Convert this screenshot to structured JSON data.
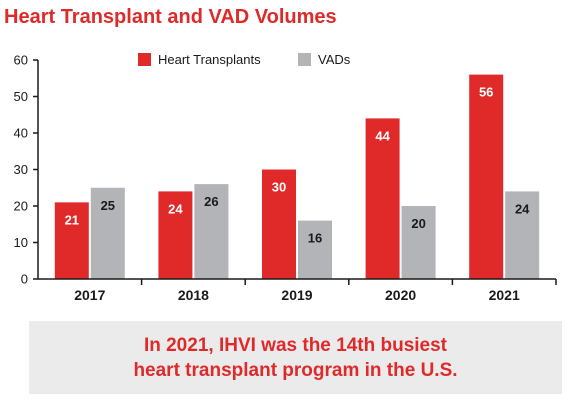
{
  "title": "Heart Transplant and VAD Volumes",
  "callout": {
    "line1": "In 2021, IHVI was the 14th busiest",
    "line2": "heart transplant program in the U.S."
  },
  "colors": {
    "accent": "#e02a2a",
    "transplants": "#e02a2a",
    "vads": "#b3b4b8",
    "text": "#1a1a1a",
    "callout_bg": "#ebebeb"
  },
  "chart_data": {
    "type": "bar",
    "title": "Heart Transplant and VAD Volumes",
    "xlabel": "",
    "ylabel": "",
    "categories": [
      "2017",
      "2018",
      "2019",
      "2020",
      "2021"
    ],
    "series": [
      {
        "name": "Heart Transplants",
        "values": [
          21,
          24,
          30,
          44,
          56
        ]
      },
      {
        "name": "VADs",
        "values": [
          25,
          26,
          16,
          20,
          24
        ]
      }
    ],
    "ylim": [
      0,
      60
    ],
    "yticks": [
      0,
      10,
      20,
      30,
      40,
      50,
      60
    ],
    "grid": false,
    "legend": "top-center",
    "data_labels": true
  }
}
